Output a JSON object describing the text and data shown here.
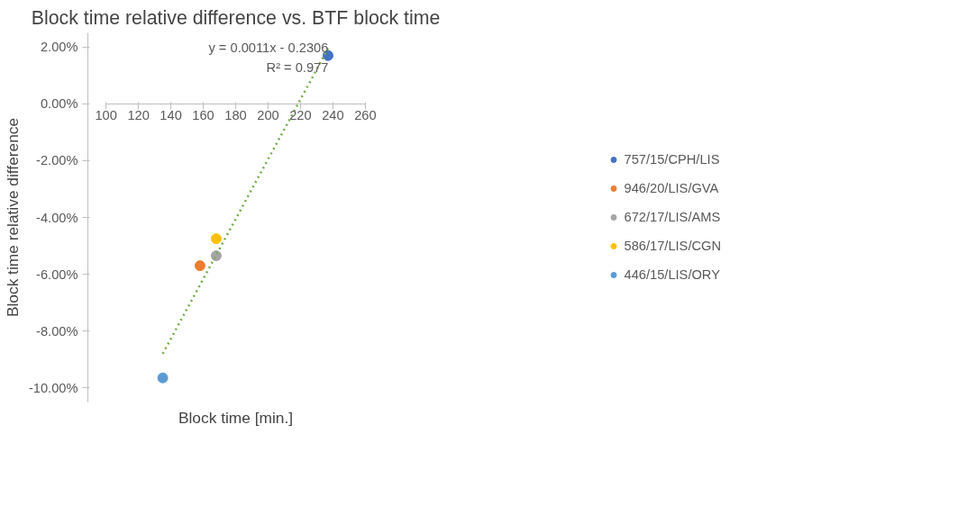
{
  "chart_data": {
    "type": "scatter",
    "title": "Block time relative difference vs. BTF block time",
    "xlabel": "Block time [min.]",
    "ylabel": "Block time relative difference",
    "xlim": [
      100,
      260
    ],
    "xticks": [
      100,
      120,
      140,
      160,
      180,
      200,
      220,
      240,
      260
    ],
    "ylim": [
      -10.5,
      2.5
    ],
    "yticks": [
      {
        "value": 2,
        "label": "2.00%"
      },
      {
        "value": 0,
        "label": "0.00%"
      },
      {
        "value": -2,
        "label": "-2.00%"
      },
      {
        "value": -4,
        "label": "-4.00%"
      },
      {
        "value": -6,
        "label": "-6.00%"
      },
      {
        "value": -8,
        "label": "-8.00%"
      },
      {
        "value": -10,
        "label": "-10.00%"
      }
    ],
    "series": [
      {
        "name": "757/15/CPH/LIS",
        "color": "#4472c4",
        "x": [
          237
        ],
        "values": [
          1.7
        ]
      },
      {
        "name": "946/20/LIS/GVA",
        "color": "#ed7d31",
        "x": [
          158
        ],
        "values": [
          -5.7
        ]
      },
      {
        "name": "672/17/LIS/AMS",
        "color": "#a5a5a5",
        "x": [
          168
        ],
        "values": [
          -5.35
        ]
      },
      {
        "name": "586/17/LIS/CGN",
        "color": "#ffc000",
        "x": [
          168
        ],
        "values": [
          -4.75
        ]
      },
      {
        "name": "446/15/LIS/ORY",
        "color": "#5b9bd5",
        "x": [
          135
        ],
        "values": [
          -9.65
        ]
      },
      {
        "type": "line",
        "color": "#70ad47",
        "line_style": "dotted",
        "marker": "none",
        "x": [
          135,
          237
        ],
        "values": [
          -8.8,
          1.95
        ]
      }
    ],
    "annotations": [
      "y = 0.0011x - 0.2306",
      "R² = 0.977"
    ],
    "marker": "circle",
    "legend": "right",
    "grid": false
  }
}
